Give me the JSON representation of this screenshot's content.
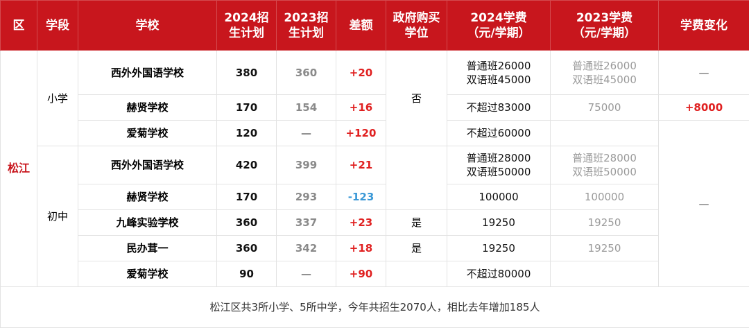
{
  "headers": {
    "district": "区",
    "stage": "学段",
    "school": "学校",
    "plan2024": [
      "2024招",
      "生计划"
    ],
    "plan2023": [
      "2023招",
      "生计划"
    ],
    "diff": "差额",
    "gov_buy": [
      "政府购买",
      "学位"
    ],
    "fee2024": [
      "2024学费",
      "（元/学期）"
    ],
    "fee2023": [
      "2023学费",
      "（元/学期）"
    ],
    "fee_change": "学费变化"
  },
  "district": "松江",
  "stages": {
    "primary": "小学",
    "middle": "初中"
  },
  "rows": [
    {
      "school": "西外外国语学校",
      "p24": "380",
      "p23": "360",
      "diff": "+20",
      "fee24": [
        "普通班26000",
        "双语班45000"
      ],
      "fee23": [
        "普通班26000",
        "双语班45000"
      ]
    },
    {
      "school": "赫贤学校",
      "p24": "170",
      "p23": "154",
      "diff": "+16",
      "fee24": [
        "不超过83000"
      ],
      "fee23": [
        "75000"
      ]
    },
    {
      "school": "爱菊学校",
      "p24": "120",
      "p23": "—",
      "diff": "+120",
      "fee24": [
        "不超过60000"
      ],
      "fee23": [
        ""
      ]
    },
    {
      "school": "西外外国语学校",
      "p24": "420",
      "p23": "399",
      "diff": "+21",
      "fee24": [
        "普通班28000",
        "双语班50000"
      ],
      "fee23": [
        "普通班28000",
        "双语班50000"
      ]
    },
    {
      "school": "赫贤学校",
      "p24": "170",
      "p23": "293",
      "diff": "-123",
      "fee24": [
        "100000"
      ],
      "fee23": [
        "100000"
      ]
    },
    {
      "school": "九峰实验学校",
      "p24": "360",
      "p23": "337",
      "diff": "+23",
      "fee24": [
        "19250"
      ],
      "fee23": [
        "19250"
      ]
    },
    {
      "school": "民办茸一",
      "p24": "360",
      "p23": "342",
      "diff": "+18",
      "fee24": [
        "19250"
      ],
      "fee23": [
        "19250"
      ]
    },
    {
      "school": "爱菊学校",
      "p24": "90",
      "p23": "—",
      "diff": "+90",
      "fee24": [
        "不超过80000"
      ],
      "fee23": [
        ""
      ]
    }
  ],
  "gov_buy": {
    "no": "否",
    "yes1": "是",
    "yes2": "是"
  },
  "fee_change": {
    "r1": "—",
    "r2": "+8000",
    "middle": "—"
  },
  "footer": "松江区共3所小学、5所中学，今年共招生2070人，相比去年增加185人",
  "colors": {
    "header_bg": "#c8161d",
    "positive": "#e02020",
    "negative": "#3a98d6"
  }
}
